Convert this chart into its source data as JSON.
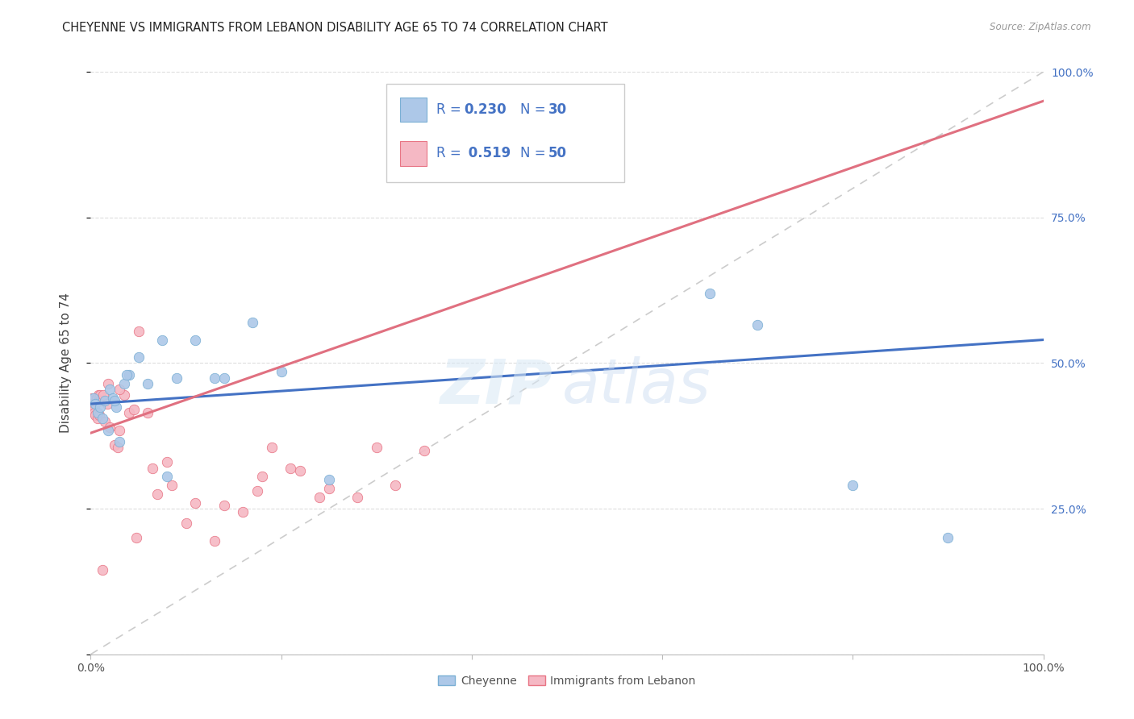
{
  "title": "CHEYENNE VS IMMIGRANTS FROM LEBANON DISABILITY AGE 65 TO 74 CORRELATION CHART",
  "source": "Source: ZipAtlas.com",
  "ylabel": "Disability Age 65 to 74",
  "legend_blue_r": "0.230",
  "legend_blue_n": "30",
  "legend_pink_r": "0.519",
  "legend_pink_n": "50",
  "legend_label_blue": "Cheyenne",
  "legend_label_pink": "Immigrants from Lebanon",
  "blue_fill": "#adc8e8",
  "pink_fill": "#f5b8c4",
  "blue_edge": "#7aafd4",
  "pink_edge": "#e87585",
  "trend_blue": "#4472c4",
  "trend_pink": "#e07080",
  "diag_color": "#cccccc",
  "text_color_blue": "#4472c4",
  "text_color_dark": "#333333",
  "blue_scatter_x": [
    0.3,
    0.5,
    0.7,
    1.0,
    1.2,
    1.5,
    1.8,
    2.0,
    2.3,
    2.7,
    3.0,
    3.5,
    4.0,
    5.0,
    6.0,
    7.5,
    9.0,
    11.0,
    14.0,
    17.0,
    20.0,
    25.0,
    8.0,
    13.0,
    65.0,
    70.0,
    80.0,
    90.0,
    3.8,
    2.5
  ],
  "blue_scatter_y": [
    44.0,
    43.0,
    41.5,
    42.5,
    40.5,
    43.5,
    38.5,
    45.5,
    44.0,
    42.5,
    36.5,
    46.5,
    48.0,
    51.0,
    46.5,
    54.0,
    47.5,
    54.0,
    47.5,
    57.0,
    48.5,
    30.0,
    30.5,
    47.5,
    62.0,
    56.5,
    29.0,
    20.0,
    48.0,
    43.5
  ],
  "pink_scatter_x": [
    0.1,
    0.15,
    0.2,
    0.25,
    0.3,
    0.35,
    0.4,
    0.5,
    0.6,
    0.7,
    0.8,
    0.9,
    1.0,
    1.1,
    1.3,
    1.5,
    1.7,
    2.0,
    2.5,
    3.0,
    3.5,
    4.0,
    5.0,
    6.0,
    8.0,
    10.0,
    13.0,
    16.0,
    19.0,
    22.0,
    3.0,
    4.5,
    7.0,
    18.0,
    25.0,
    30.0,
    1.8,
    2.8,
    4.8,
    6.5,
    8.5,
    11.0,
    14.0,
    17.5,
    21.0,
    24.0,
    28.0,
    32.0,
    1.2,
    35.0
  ],
  "pink_scatter_y": [
    44.0,
    43.5,
    43.0,
    43.0,
    42.5,
    42.0,
    41.5,
    41.0,
    44.0,
    40.5,
    44.5,
    41.0,
    44.5,
    43.5,
    44.5,
    40.0,
    43.0,
    39.0,
    36.0,
    38.5,
    44.5,
    41.5,
    55.5,
    41.5,
    33.0,
    22.5,
    19.5,
    24.5,
    35.5,
    31.5,
    45.5,
    42.0,
    27.5,
    30.5,
    28.5,
    35.5,
    46.5,
    35.5,
    20.0,
    32.0,
    29.0,
    26.0,
    25.5,
    28.0,
    32.0,
    27.0,
    27.0,
    29.0,
    14.5,
    35.0
  ],
  "xlim": [
    0,
    100
  ],
  "ylim": [
    0,
    100
  ],
  "watermark_zip": "ZIP",
  "watermark_atlas": "atlas",
  "dot_size": 80
}
